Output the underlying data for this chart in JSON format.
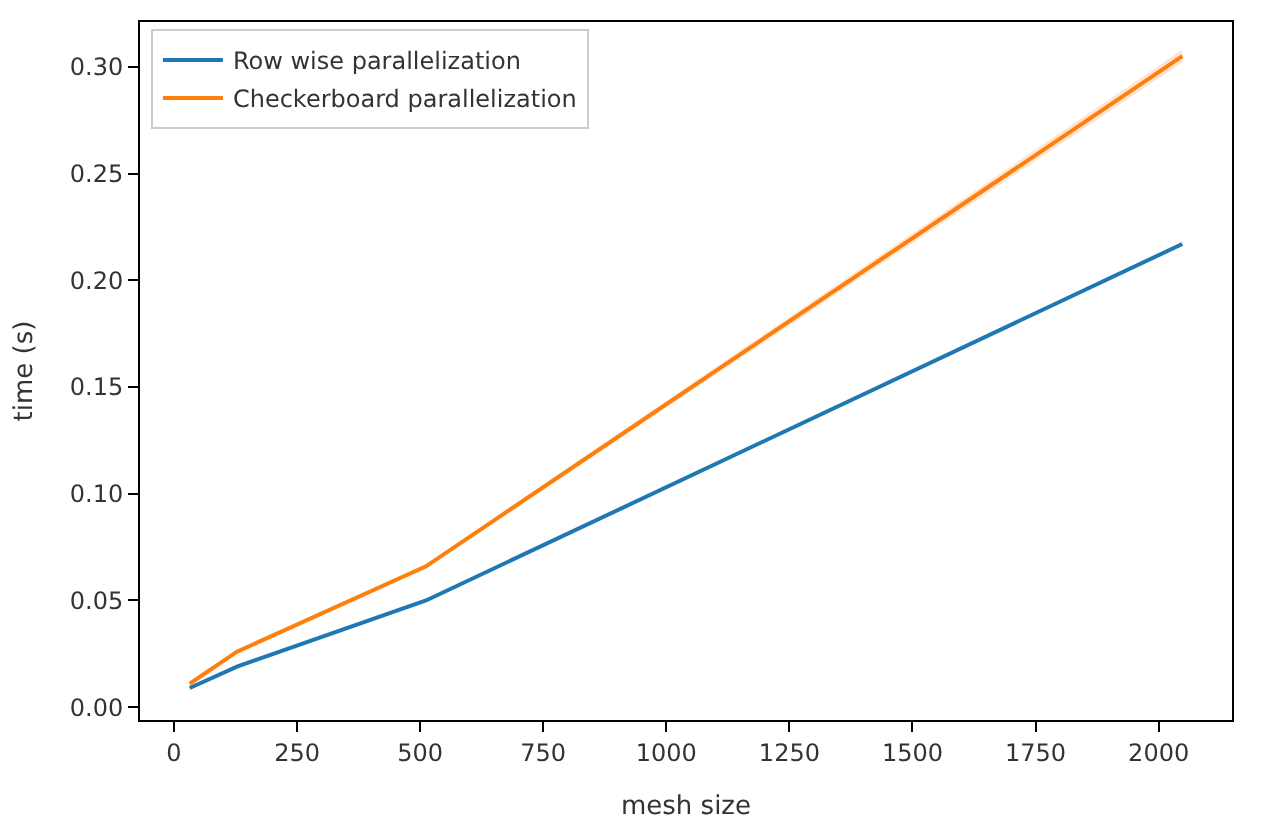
{
  "chart_data": {
    "type": "line",
    "xlabel": "mesh size",
    "ylabel": "time (s)",
    "x": [
      32,
      128,
      512,
      2048
    ],
    "series": [
      {
        "name": "Row wise parallelization",
        "color": "#1f77b4",
        "values": [
          0.009,
          0.019,
          0.05,
          0.217
        ]
      },
      {
        "name": "Checkerboard parallelization",
        "color": "#ff7f0e",
        "values": [
          0.011,
          0.026,
          0.066,
          0.305
        ],
        "lower": [
          0.01,
          0.025,
          0.065,
          0.302
        ],
        "upper": [
          0.012,
          0.027,
          0.067,
          0.308
        ]
      }
    ],
    "xlim": [
      -69,
      2149
    ],
    "ylim": [
      -0.006,
      0.321
    ],
    "xticks": [
      0,
      250,
      500,
      750,
      1000,
      1250,
      1500,
      1750,
      2000
    ],
    "yticks": [
      {
        "value": 0,
        "label": "0.00"
      },
      {
        "value": 0.05,
        "label": "0.05"
      },
      {
        "value": 0.1,
        "label": "0.10"
      },
      {
        "value": 0.15,
        "label": "0.15"
      },
      {
        "value": 0.2,
        "label": "0.20"
      },
      {
        "value": 0.25,
        "label": "0.25"
      },
      {
        "value": 0.3,
        "label": "0.30"
      }
    ],
    "legend": "top left",
    "marker": "none",
    "line_style": "solid"
  }
}
